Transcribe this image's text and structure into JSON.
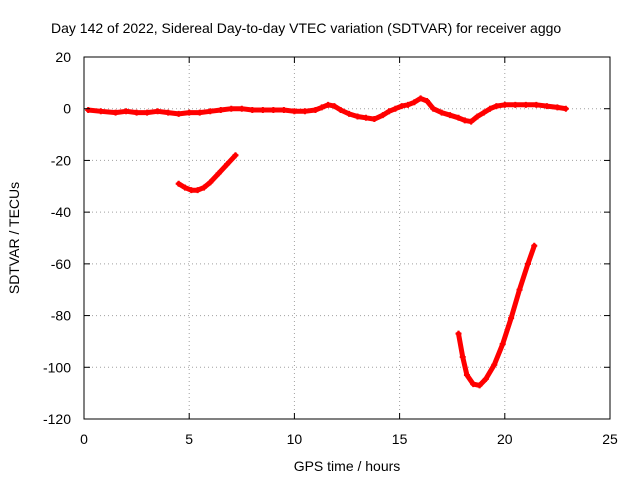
{
  "chart_data": {
    "type": "scatter",
    "title": "Day 142 of 2022, Sidereal Day-to-day VTEC variation (SDTVAR) for receiver aggo",
    "xlabel": "GPS time / hours",
    "ylabel": "SDTVAR / TECUs",
    "xlim": [
      0,
      25
    ],
    "ylim": [
      -120,
      20
    ],
    "xticks": [
      0,
      5,
      10,
      15,
      20,
      25
    ],
    "yticks": [
      20,
      0,
      -20,
      -40,
      -60,
      -80,
      -100,
      -120
    ],
    "grid": true,
    "series_color": "#ff0000",
    "series": [
      {
        "name": "main-trace",
        "x": [
          0.2,
          0.8,
          1.5,
          2.0,
          2.5,
          3.0,
          3.5,
          4.0,
          4.5,
          5.0,
          5.5,
          6.0,
          6.5,
          7.0,
          7.5,
          8.0,
          8.5,
          9.0,
          9.5,
          10.0,
          10.5,
          11.0,
          11.3,
          11.6,
          11.9,
          12.2,
          12.6,
          13.0,
          13.4,
          13.8,
          14.2,
          14.5,
          14.8,
          15.1,
          15.4,
          15.7,
          16.0,
          16.3,
          16.6,
          17.0,
          17.4,
          17.8,
          18.1,
          18.4,
          18.7,
          19.0,
          19.3,
          19.6,
          20.0,
          20.5,
          21.0,
          21.5,
          22.0,
          22.5,
          22.9
        ],
        "y": [
          -0.5,
          -1,
          -1.5,
          -1,
          -1.5,
          -1.5,
          -1,
          -1.5,
          -2,
          -1.5,
          -1.5,
          -1,
          -0.5,
          0,
          0,
          -0.5,
          -0.5,
          -0.5,
          -0.5,
          -1,
          -1,
          -0.5,
          0.5,
          1.5,
          1,
          -0.5,
          -2,
          -3,
          -3.5,
          -4,
          -2.5,
          -1,
          0,
          1,
          1.5,
          2.5,
          4,
          3,
          0,
          -1.5,
          -2.5,
          -3.5,
          -4.5,
          -5,
          -3,
          -1.5,
          0,
          1,
          1.5,
          1.5,
          1.5,
          1.5,
          1,
          0.5,
          0
        ]
      },
      {
        "name": "early-segment",
        "x": [
          4.5,
          4.8,
          5.1,
          5.4,
          5.7,
          6.0,
          6.4,
          6.8,
          7.2
        ],
        "y": [
          -29,
          -30.5,
          -31.5,
          -31.5,
          -30.5,
          -28.5,
          -25,
          -21.5,
          -18
        ]
      },
      {
        "name": "late-segment",
        "x": [
          17.8,
          18.0,
          18.2,
          18.5,
          18.8,
          19.1,
          19.5,
          19.9,
          20.3,
          20.7,
          21.1,
          21.4
        ],
        "y": [
          -87,
          -96,
          -103,
          -106.5,
          -107,
          -104.5,
          -99,
          -91,
          -81,
          -70,
          -60,
          -53
        ]
      }
    ]
  }
}
